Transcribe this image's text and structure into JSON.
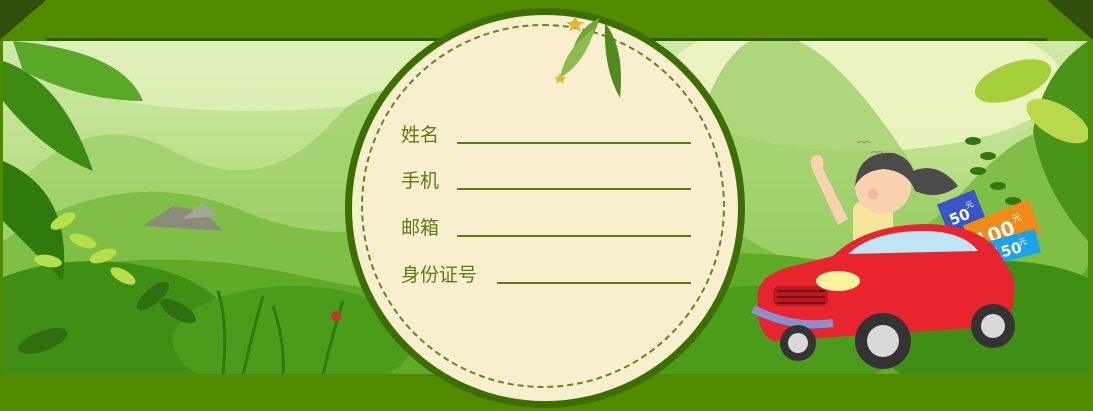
{
  "form": {
    "fields": [
      {
        "label": "姓名"
      },
      {
        "label": "手机"
      },
      {
        "label": "邮箱"
      },
      {
        "label": "身份证号"
      }
    ]
  },
  "coupons": [
    {
      "amount": "50",
      "unit": "元",
      "color": "#3a55c8"
    },
    {
      "amount": "100",
      "unit": "元",
      "color": "#f28a18"
    },
    {
      "amount": "150",
      "unit": "元",
      "color": "#1aa3e8"
    }
  ],
  "colors": {
    "frame_green": "#508b00",
    "dark_green": "#2f4f0a",
    "paper": "#f7efce",
    "label_green": "#5a7d12",
    "car_red": "#e8242e"
  }
}
